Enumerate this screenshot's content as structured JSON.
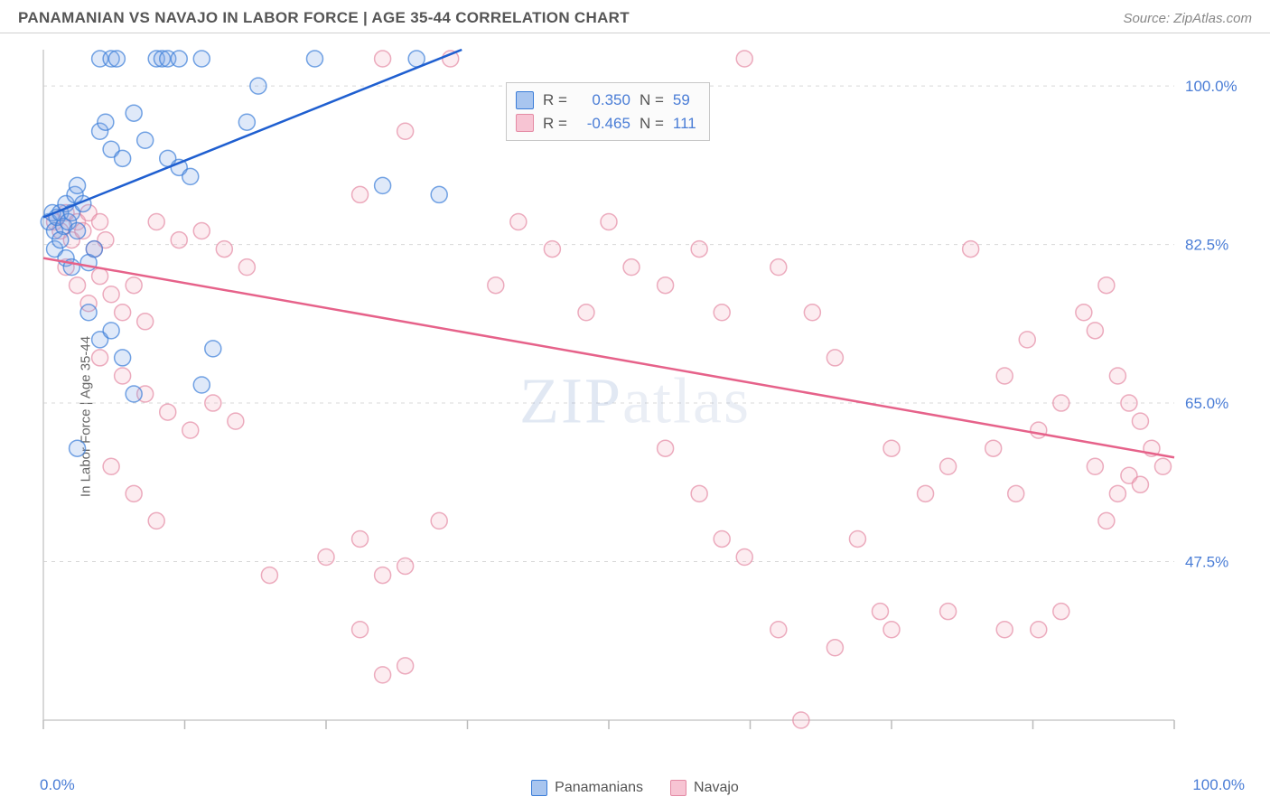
{
  "header": {
    "title": "PANAMANIAN VS NAVAJO IN LABOR FORCE | AGE 35-44 CORRELATION CHART",
    "source": "Source: ZipAtlas.com"
  },
  "ylabel": "In Labor Force | Age 35-44",
  "watermark": "ZIPatlas",
  "chart": {
    "type": "scatter",
    "background_color": "#ffffff",
    "grid_color": "#d8d8d8",
    "axis_color": "#cccccc",
    "tick_color": "#bbbbbb",
    "axis_label_color": "#4a7dd6",
    "xlim": [
      0,
      100
    ],
    "ylim": [
      30,
      104
    ],
    "y_gridlines": [
      47.5,
      65.0,
      82.5,
      100.0
    ],
    "y_labels": [
      "47.5%",
      "65.0%",
      "82.5%",
      "100.0%"
    ],
    "x_ticks": [
      0,
      12.5,
      25,
      37.5,
      50,
      62.5,
      75,
      87.5,
      100
    ],
    "x_min_label": "0.0%",
    "x_max_label": "100.0%",
    "marker_radius": 9,
    "marker_fill_opacity": 0.25,
    "marker_stroke_width": 1.5,
    "trend_line_width": 2.5,
    "series": [
      {
        "name": "Panamanians",
        "color_stroke": "#3b7dd8",
        "color_fill": "#7fa9e6",
        "trend_color": "#1f5fd0",
        "trend": {
          "x1": 0,
          "y1": 85.5,
          "x2": 37,
          "y2": 104
        },
        "R": "0.350",
        "N": "59",
        "points": [
          [
            0.5,
            85
          ],
          [
            0.8,
            86
          ],
          [
            1.0,
            84
          ],
          [
            1.2,
            85.5
          ],
          [
            1.5,
            86
          ],
          [
            1.8,
            84.5
          ],
          [
            2.0,
            87
          ],
          [
            2.2,
            85
          ],
          [
            2.5,
            86
          ],
          [
            2.8,
            88
          ],
          [
            3.0,
            84
          ],
          [
            1.0,
            82
          ],
          [
            1.5,
            83
          ],
          [
            2.0,
            81
          ],
          [
            2.5,
            80
          ],
          [
            4.0,
            80.5
          ],
          [
            4.5,
            82
          ],
          [
            3.5,
            87
          ],
          [
            3.0,
            89
          ],
          [
            5.0,
            103
          ],
          [
            6.0,
            103
          ],
          [
            6.5,
            103
          ],
          [
            10.0,
            103
          ],
          [
            10.5,
            103
          ],
          [
            11.0,
            103
          ],
          [
            12.0,
            103
          ],
          [
            14.0,
            103
          ],
          [
            5.0,
            95
          ],
          [
            5.5,
            96
          ],
          [
            6.0,
            93
          ],
          [
            7.0,
            92
          ],
          [
            8.0,
            97
          ],
          [
            9.0,
            94
          ],
          [
            11.0,
            92
          ],
          [
            12.0,
            91
          ],
          [
            13.0,
            90
          ],
          [
            18.0,
            96
          ],
          [
            19.0,
            100
          ],
          [
            24.0,
            103
          ],
          [
            4.0,
            75
          ],
          [
            5.0,
            72
          ],
          [
            6.0,
            73
          ],
          [
            7.0,
            70
          ],
          [
            8.0,
            66
          ],
          [
            3.0,
            60
          ],
          [
            14.0,
            67
          ],
          [
            15.0,
            71
          ],
          [
            30.0,
            89
          ],
          [
            33.0,
            103
          ],
          [
            35.0,
            88
          ]
        ]
      },
      {
        "name": "Navajo",
        "color_stroke": "#e48aa4",
        "color_fill": "#f4b3c4",
        "trend_color": "#e6628a",
        "trend": {
          "x1": 0,
          "y1": 81,
          "x2": 100,
          "y2": 59
        },
        "R": "-0.465",
        "N": "111",
        "points": [
          [
            1.0,
            85
          ],
          [
            1.5,
            84
          ],
          [
            2.0,
            86
          ],
          [
            2.5,
            83
          ],
          [
            3.0,
            85
          ],
          [
            3.5,
            84
          ],
          [
            4.0,
            86
          ],
          [
            4.5,
            82
          ],
          [
            5.0,
            85
          ],
          [
            5.5,
            83
          ],
          [
            2.0,
            80
          ],
          [
            3.0,
            78
          ],
          [
            4.0,
            76
          ],
          [
            5.0,
            79
          ],
          [
            6.0,
            77
          ],
          [
            7.0,
            75
          ],
          [
            8.0,
            78
          ],
          [
            9.0,
            74
          ],
          [
            10.0,
            85
          ],
          [
            12.0,
            83
          ],
          [
            14.0,
            84
          ],
          [
            16.0,
            82
          ],
          [
            18.0,
            80
          ],
          [
            5.0,
            70
          ],
          [
            7.0,
            68
          ],
          [
            9.0,
            66
          ],
          [
            11.0,
            64
          ],
          [
            13.0,
            62
          ],
          [
            15.0,
            65
          ],
          [
            17.0,
            63
          ],
          [
            6.0,
            58
          ],
          [
            8.0,
            55
          ],
          [
            10.0,
            52
          ],
          [
            28.0,
            88
          ],
          [
            30.0,
            103
          ],
          [
            32.0,
            95
          ],
          [
            36.0,
            103
          ],
          [
            40.0,
            78
          ],
          [
            42.0,
            85
          ],
          [
            20.0,
            46
          ],
          [
            25.0,
            48
          ],
          [
            28.0,
            50
          ],
          [
            30.0,
            46
          ],
          [
            32.0,
            47
          ],
          [
            35.0,
            52
          ],
          [
            45.0,
            82
          ],
          [
            48.0,
            75
          ],
          [
            50.0,
            85
          ],
          [
            52.0,
            80
          ],
          [
            55.0,
            78
          ],
          [
            58.0,
            82
          ],
          [
            60.0,
            75
          ],
          [
            62.0,
            103
          ],
          [
            65.0,
            80
          ],
          [
            68.0,
            75
          ],
          [
            70.0,
            70
          ],
          [
            72.0,
            50
          ],
          [
            74.0,
            42
          ],
          [
            67.0,
            30
          ],
          [
            75.0,
            60
          ],
          [
            78.0,
            55
          ],
          [
            80.0,
            58
          ],
          [
            82.0,
            82
          ],
          [
            84.0,
            60
          ],
          [
            86.0,
            55
          ],
          [
            88.0,
            40
          ],
          [
            90.0,
            42
          ],
          [
            92.0,
            75
          ],
          [
            93.0,
            73
          ],
          [
            94.0,
            78
          ],
          [
            95.0,
            68
          ],
          [
            96.0,
            65
          ],
          [
            97.0,
            63
          ],
          [
            98.0,
            60
          ],
          [
            99.0,
            58
          ],
          [
            65.0,
            40
          ],
          [
            70.0,
            38
          ],
          [
            75.0,
            40
          ],
          [
            80.0,
            42
          ],
          [
            85.0,
            40
          ],
          [
            55.0,
            60
          ],
          [
            58.0,
            55
          ],
          [
            60.0,
            50
          ],
          [
            62.0,
            48
          ],
          [
            28.0,
            40
          ],
          [
            30.0,
            35
          ],
          [
            32.0,
            36
          ],
          [
            95.0,
            55
          ],
          [
            96.0,
            57
          ],
          [
            97.0,
            56
          ],
          [
            94.0,
            52
          ],
          [
            93.0,
            58
          ],
          [
            88.0,
            62
          ],
          [
            90.0,
            65
          ],
          [
            85.0,
            68
          ],
          [
            87.0,
            72
          ]
        ]
      }
    ]
  },
  "legend": {
    "series1": "Panamanians",
    "series2": "Navajo"
  },
  "correl_box": {
    "rows": [
      {
        "sw_fill": "#a8c5ef",
        "sw_stroke": "#3b7dd8",
        "R_label": "R =",
        "R": "0.350",
        "N_label": "N =",
        "N": "59"
      },
      {
        "sw_fill": "#f7c4d3",
        "sw_stroke": "#e48aa4",
        "R_label": "R =",
        "R": "-0.465",
        "N_label": "N =",
        "N": "111"
      }
    ]
  }
}
